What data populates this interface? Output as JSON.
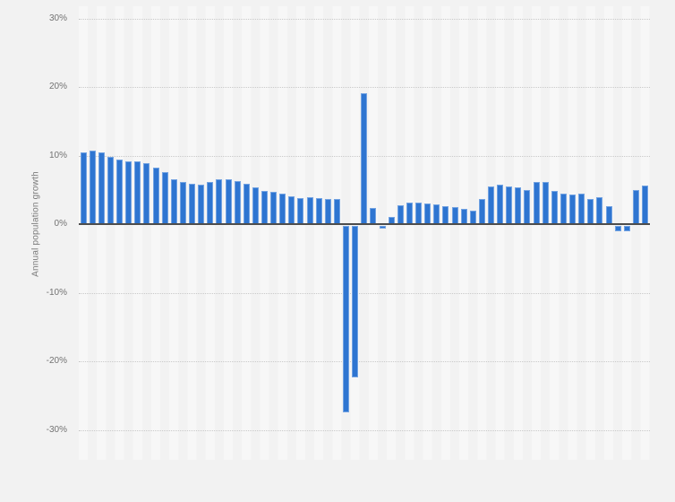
{
  "y_axis": {
    "title": "Annual population growth",
    "ticks": [
      "30%",
      "20%",
      "10%",
      "0%",
      "-10%",
      "-20%",
      "-30%"
    ]
  },
  "chart_data": {
    "type": "bar",
    "title": "",
    "xlabel": "",
    "ylabel": "Annual population growth",
    "ylim": [
      -30,
      30
    ],
    "grid": "horizontal dotted lines every 10%",
    "legend": "none",
    "x_tick_labels_visible": false,
    "n_bars": 63,
    "values": [
      10.5,
      10.7,
      10.4,
      9.8,
      9.4,
      9.2,
      9.1,
      8.9,
      8.3,
      7.6,
      6.5,
      6.1,
      5.9,
      5.8,
      6.2,
      6.5,
      6.5,
      6.3,
      5.9,
      5.4,
      4.9,
      4.7,
      4.5,
      4.1,
      3.8,
      3.9,
      3.8,
      3.7,
      3.6,
      -27.5,
      -22.4,
      19.1,
      2.4,
      -0.7,
      1.1,
      2.7,
      3.2,
      3.1,
      3.0,
      2.9,
      2.6,
      2.5,
      2.2,
      2.0,
      3.6,
      5.5,
      5.8,
      5.5,
      5.3,
      5.0,
      6.1,
      6.1,
      4.8,
      4.4,
      4.3,
      4.4,
      3.6,
      3.9,
      2.6,
      -1.1,
      -1.0,
      5.0,
      5.6
    ]
  },
  "colors": {
    "bar": "#2e75d1",
    "bar_edge": "#a8c6ee",
    "axis_line": "#4d4d4d",
    "gridline": "#c9c9c9",
    "tick_text": "#737373",
    "axis_title_text": "#7a7a7a",
    "page_background": "#f2f2f2",
    "stripe_light": "#f7f7f7",
    "stripe_dark": "#f2f2f2"
  }
}
